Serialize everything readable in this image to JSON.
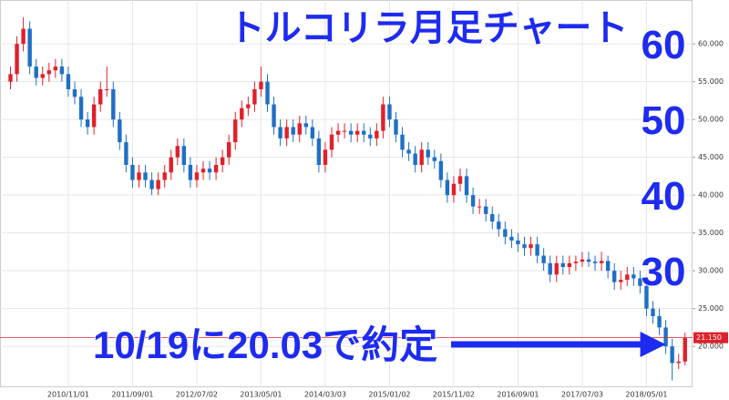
{
  "chart_data": {
    "type": "candlestick",
    "title": "トルコリラ月足チャート",
    "note": "10/19に20.03で約定",
    "big_labels": [
      60,
      50,
      40,
      30
    ],
    "up_color": "#e0202a",
    "down_color": "#1f6fc5",
    "grid": true,
    "ylim": [
      14.6,
      65.8
    ],
    "yticks": [
      {
        "value": 20,
        "label": "20.000"
      },
      {
        "value": 25,
        "label": "25.000"
      },
      {
        "value": 30,
        "label": "30.000"
      },
      {
        "value": 35,
        "label": "35.000"
      },
      {
        "value": 40,
        "label": "40.000"
      },
      {
        "value": 45,
        "label": "45.000"
      },
      {
        "value": 50,
        "label": "50.000"
      },
      {
        "value": 55,
        "label": "55.000"
      },
      {
        "value": 60,
        "label": "60.000"
      }
    ],
    "last_price": {
      "value": 21.15,
      "label": "21.150"
    },
    "categories": [
      null,
      null,
      null,
      null,
      null,
      null,
      null,
      null,
      null,
      "2010/11/01",
      null,
      null,
      null,
      null,
      null,
      null,
      null,
      null,
      null,
      "2011/09/01",
      null,
      null,
      null,
      null,
      null,
      null,
      null,
      null,
      null,
      "2012/07/02",
      null,
      null,
      null,
      null,
      null,
      null,
      null,
      null,
      null,
      "2013/05/01",
      null,
      null,
      null,
      null,
      null,
      null,
      null,
      null,
      null,
      "2014/03/03",
      null,
      null,
      null,
      null,
      null,
      null,
      null,
      null,
      null,
      "2015/01/02",
      null,
      null,
      null,
      null,
      null,
      null,
      null,
      null,
      null,
      "2015/11/02",
      null,
      null,
      null,
      null,
      null,
      null,
      null,
      null,
      null,
      "2016/09/01",
      null,
      null,
      null,
      null,
      null,
      null,
      null,
      null,
      null,
      "2017/07/03",
      null,
      null,
      null,
      null,
      null,
      null,
      null,
      null,
      null,
      "2018/05/01",
      null,
      null,
      null,
      null,
      null,
      null
    ],
    "open": [
      55,
      56,
      60,
      62,
      57,
      55.5,
      56,
      56.5,
      57,
      56,
      54,
      53,
      50,
      49,
      52,
      54,
      54,
      50,
      47,
      44,
      42,
      43,
      42,
      40.8,
      42,
      43,
      45,
      46.5,
      44,
      42,
      43,
      43.5,
      43,
      44,
      45,
      47,
      50,
      51.5,
      52,
      54,
      55,
      52,
      49,
      47.5,
      49,
      48,
      49.5,
      49,
      47.5,
      44,
      46,
      48,
      48.5,
      48.5,
      48,
      48.5,
      48,
      47.5,
      48.5,
      52,
      50,
      48,
      46,
      45.5,
      44,
      46,
      45,
      44.5,
      42,
      40,
      41.5,
      42.5,
      40,
      38.5,
      38.5,
      37.5,
      36.5,
      35.5,
      34.5,
      34,
      33.5,
      33,
      33.5,
      32,
      31,
      29.5,
      31,
      30.5,
      31,
      31.2,
      31.5,
      31.2,
      31,
      31.3,
      30,
      28.5,
      28.8,
      29.5,
      29,
      28,
      25,
      24,
      22.5,
      20,
      17.8,
      18
    ],
    "high": [
      57,
      61,
      63.5,
      63,
      58,
      57,
      57.5,
      58,
      58,
      57,
      55,
      54,
      51,
      53,
      55,
      57,
      55,
      51,
      48,
      45,
      44,
      44,
      43,
      43,
      44,
      46,
      47.5,
      47.5,
      45,
      44,
      44.5,
      44.5,
      45,
      46,
      48,
      51,
      52.5,
      53,
      55,
      57,
      56,
      53,
      50,
      50,
      50,
      50.5,
      50.5,
      50,
      48.5,
      47,
      49,
      49.5,
      49.5,
      49.5,
      49.5,
      49.5,
      49,
      49.5,
      53,
      53,
      51,
      49,
      47,
      46.5,
      47,
      47,
      46,
      45.5,
      43,
      42.5,
      43.5,
      43.5,
      41,
      39.5,
      39.5,
      38.5,
      37.5,
      36.5,
      35.5,
      35,
      34.5,
      34.5,
      34.5,
      33,
      32,
      32,
      32,
      32,
      32,
      32.5,
      32.5,
      32,
      32.5,
      32,
      31,
      30,
      30.5,
      30.5,
      30,
      29,
      26,
      25,
      23.5,
      21,
      19,
      21.8
    ],
    "low": [
      54,
      55,
      59,
      56,
      54.5,
      54.5,
      55,
      55.5,
      55,
      53,
      52,
      49,
      48,
      48,
      51,
      53,
      49,
      46,
      43,
      41,
      41,
      41,
      40,
      40,
      41,
      42,
      44,
      43,
      41,
      41,
      42,
      42,
      42,
      43,
      44,
      46,
      49,
      50.5,
      51,
      53,
      51,
      48,
      46.5,
      46.5,
      47,
      47,
      48,
      46.5,
      43,
      43,
      45,
      47,
      47.5,
      47,
      47,
      47,
      46.5,
      46.5,
      47.5,
      49,
      47,
      45,
      44.5,
      43,
      43,
      44,
      43.5,
      41,
      39,
      39,
      40.5,
      39,
      37.5,
      37.5,
      36.5,
      35.5,
      34.5,
      33.5,
      33,
      32.5,
      32,
      32,
      31,
      30,
      28.5,
      28.5,
      29.5,
      29.5,
      30,
      30.5,
      30.5,
      30,
      30,
      29,
      27.5,
      27.5,
      28,
      28,
      27,
      24,
      23,
      21.5,
      19,
      15.5,
      17,
      17.5
    ],
    "close": [
      56,
      60,
      62,
      57,
      55.5,
      56,
      56.5,
      57,
      56,
      54,
      53,
      50,
      49,
      52,
      54,
      54,
      50,
      47,
      44,
      42,
      43,
      42,
      40.8,
      42,
      43,
      45,
      46.5,
      44,
      42,
      43,
      43.5,
      43,
      44,
      45,
      47,
      50,
      51.5,
      52,
      54,
      55,
      52,
      49,
      47.5,
      49,
      48,
      49.5,
      49,
      47.5,
      44,
      46,
      48,
      48.5,
      48.5,
      48,
      48.5,
      48,
      47.5,
      48.5,
      52,
      50,
      48,
      46,
      45.5,
      44,
      46,
      45,
      44.5,
      42,
      40,
      41.5,
      42.5,
      40,
      38.5,
      38.5,
      37.5,
      36.5,
      35.5,
      34.5,
      34,
      33.5,
      33,
      33.5,
      32,
      31,
      29.5,
      31,
      30.5,
      31,
      31.2,
      31.5,
      31.2,
      31,
      31.3,
      30,
      28.5,
      28.8,
      29.5,
      29,
      28,
      25,
      24,
      22.5,
      20,
      17.8,
      18,
      21.15
    ]
  }
}
